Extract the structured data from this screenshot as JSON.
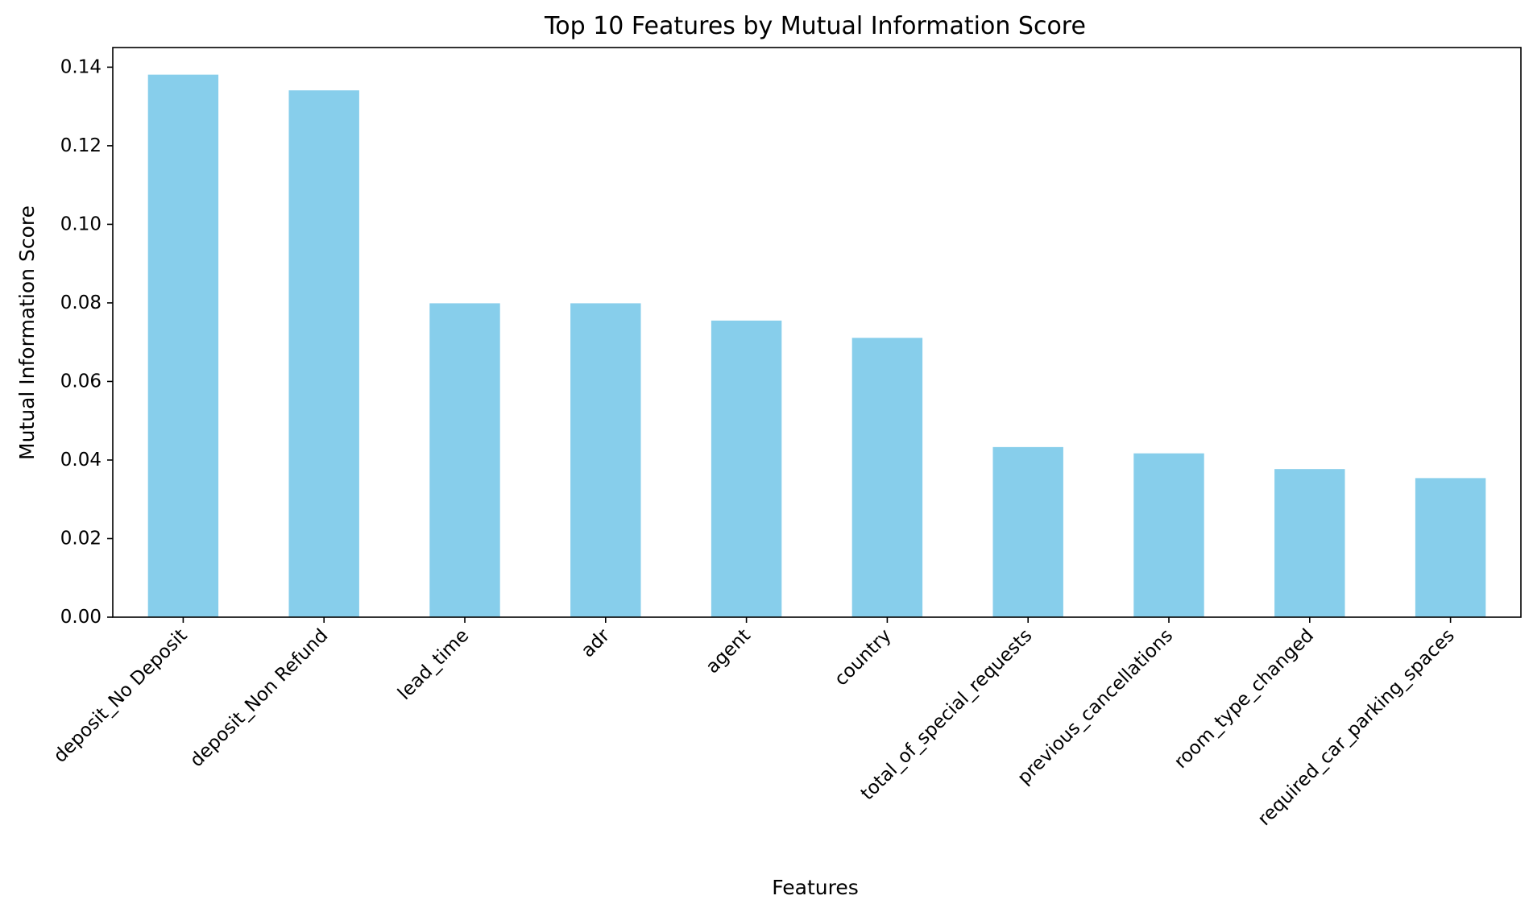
{
  "chart_data": {
    "type": "bar",
    "title": "Top 10 Features by Mutual Information Score",
    "xlabel": "Features",
    "ylabel": "Mutual Information Score",
    "categories": [
      "deposit_No Deposit",
      "deposit_Non Refund",
      "lead_time",
      "adr",
      "agent",
      "country",
      "total_of_special_requests",
      "previous_cancellations",
      "room_type_changed",
      "required_car_parking_spaces"
    ],
    "values": [
      0.1381,
      0.1341,
      0.0799,
      0.0799,
      0.0755,
      0.0711,
      0.0433,
      0.0417,
      0.0377,
      0.0354
    ],
    "ylim": [
      0,
      0.145
    ],
    "yticks": [
      0.0,
      0.02,
      0.04,
      0.06,
      0.08,
      0.1,
      0.12,
      0.14
    ],
    "ytick_labels": [
      "0.00",
      "0.02",
      "0.04",
      "0.06",
      "0.08",
      "0.10",
      "0.12",
      "0.14"
    ],
    "grid": false,
    "bar_color": "#87CEEB"
  }
}
